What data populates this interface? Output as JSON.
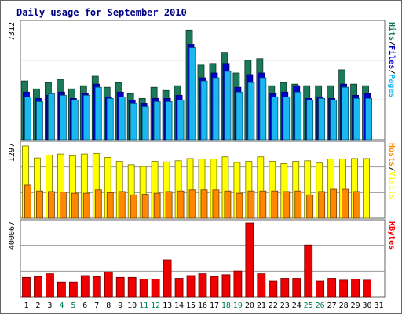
{
  "title": "Daily usage for September 2010",
  "colors": {
    "hits": "#1a7a5a",
    "files": "#0000cc",
    "pages": "#1ab8f0",
    "visits": "#ffff00",
    "hosts": "#ff8800",
    "kbytes": "#ee0000",
    "title": "#000080",
    "weekend": "#007f4e"
  },
  "chart_data": [
    {
      "type": "bar",
      "name": "hits-files-pages",
      "right_label": [
        "Hits",
        "/",
        "Files",
        "/",
        "Pages"
      ],
      "right_label_colors": [
        "#1a7a5a",
        "#000000",
        "#0000cc",
        "#000000",
        "#1ab8f0"
      ],
      "y_max_label": "7312",
      "ylim": [
        0,
        7312
      ],
      "grid": true,
      "categories": [
        "1",
        "2",
        "3",
        "4",
        "5",
        "6",
        "7",
        "8",
        "9",
        "10",
        "11",
        "12",
        "13",
        "14",
        "15",
        "16",
        "17",
        "18",
        "19",
        "20",
        "21",
        "22",
        "23",
        "24",
        "25",
        "26",
        "27",
        "28",
        "29",
        "30",
        "31"
      ],
      "series": [
        {
          "name": "Hits",
          "values": [
            3700,
            3200,
            3600,
            3800,
            3200,
            3400,
            4000,
            3300,
            3600,
            2900,
            2600,
            3300,
            3100,
            3400,
            6900,
            4700,
            4800,
            5500,
            4200,
            5000,
            5100,
            3400,
            3600,
            3500,
            3400,
            3400,
            3400,
            4400,
            3500,
            3400,
            0
          ]
        },
        {
          "name": "Files",
          "values": [
            3000,
            2600,
            2800,
            3000,
            2600,
            2900,
            3500,
            2700,
            3000,
            2500,
            2300,
            2600,
            2600,
            2800,
            6000,
            3900,
            4200,
            4800,
            3300,
            4100,
            4200,
            2900,
            3000,
            3400,
            2600,
            2700,
            2600,
            3500,
            2800,
            2900,
            0
          ]
        },
        {
          "name": "Pages",
          "values": [
            2700,
            2400,
            2900,
            2800,
            2500,
            2800,
            3300,
            2600,
            2700,
            2300,
            2100,
            2400,
            2400,
            2500,
            5800,
            3700,
            3900,
            4300,
            3000,
            3600,
            3900,
            2700,
            2700,
            3000,
            2500,
            2600,
            2500,
            3300,
            2600,
            2600,
            0
          ]
        }
      ]
    },
    {
      "type": "bar",
      "name": "hosts-visits",
      "right_label": [
        "Hosts",
        "/",
        "Visits"
      ],
      "right_label_colors": [
        "#ff8800",
        "#000000",
        "#ffff00"
      ],
      "y_max_label": "1297",
      "ylim": [
        0,
        1297
      ],
      "grid": true,
      "categories": [
        "1",
        "2",
        "3",
        "4",
        "5",
        "6",
        "7",
        "8",
        "9",
        "10",
        "11",
        "12",
        "13",
        "14",
        "15",
        "16",
        "17",
        "18",
        "19",
        "20",
        "21",
        "22",
        "23",
        "24",
        "25",
        "26",
        "27",
        "28",
        "29",
        "30",
        "31"
      ],
      "series": [
        {
          "name": "Visits",
          "values": [
            1270,
            1060,
            1110,
            1130,
            1100,
            1130,
            1140,
            1070,
            1000,
            940,
            910,
            1000,
            990,
            1010,
            1050,
            1040,
            1040,
            1080,
            980,
            1000,
            1080,
            1000,
            960,
            1000,
            1010,
            970,
            1040,
            1040,
            1050,
            1050,
            0
          ]
        },
        {
          "name": "Hosts",
          "values": [
            580,
            480,
            470,
            460,
            440,
            440,
            500,
            450,
            470,
            410,
            420,
            440,
            470,
            480,
            500,
            500,
            500,
            480,
            440,
            480,
            480,
            480,
            470,
            480,
            410,
            470,
            510,
            510,
            470,
            0,
            0
          ]
        }
      ]
    },
    {
      "type": "bar",
      "name": "kbytes",
      "right_label": [
        "KBytes"
      ],
      "right_label_colors": [
        "#ee0000"
      ],
      "y_max_label": "400067",
      "ylim": [
        0,
        400067
      ],
      "grid": true,
      "categories": [
        "1",
        "2",
        "3",
        "4",
        "5",
        "6",
        "7",
        "8",
        "9",
        "10",
        "11",
        "12",
        "13",
        "14",
        "15",
        "16",
        "17",
        "18",
        "19",
        "20",
        "21",
        "22",
        "23",
        "24",
        "25",
        "26",
        "27",
        "28",
        "29",
        "30",
        "31"
      ],
      "series": [
        {
          "name": "KBytes",
          "values": [
            105000,
            110000,
            125000,
            80000,
            80000,
            115000,
            110000,
            135000,
            105000,
            105000,
            95000,
            95000,
            200000,
            100000,
            115000,
            125000,
            110000,
            120000,
            140000,
            400000,
            125000,
            85000,
            100000,
            100000,
            280000,
            85000,
            100000,
            90000,
            95000,
            90000,
            0
          ]
        }
      ]
    }
  ],
  "x_labels": [
    "1",
    "2",
    "3",
    "4",
    "5",
    "6",
    "7",
    "8",
    "9",
    "10",
    "11",
    "12",
    "13",
    "14",
    "15",
    "16",
    "17",
    "18",
    "19",
    "20",
    "21",
    "22",
    "23",
    "24",
    "25",
    "26",
    "27",
    "28",
    "29",
    "30",
    "31"
  ],
  "weekend_days": [
    "4",
    "5",
    "11",
    "12",
    "18",
    "19",
    "25",
    "26"
  ]
}
